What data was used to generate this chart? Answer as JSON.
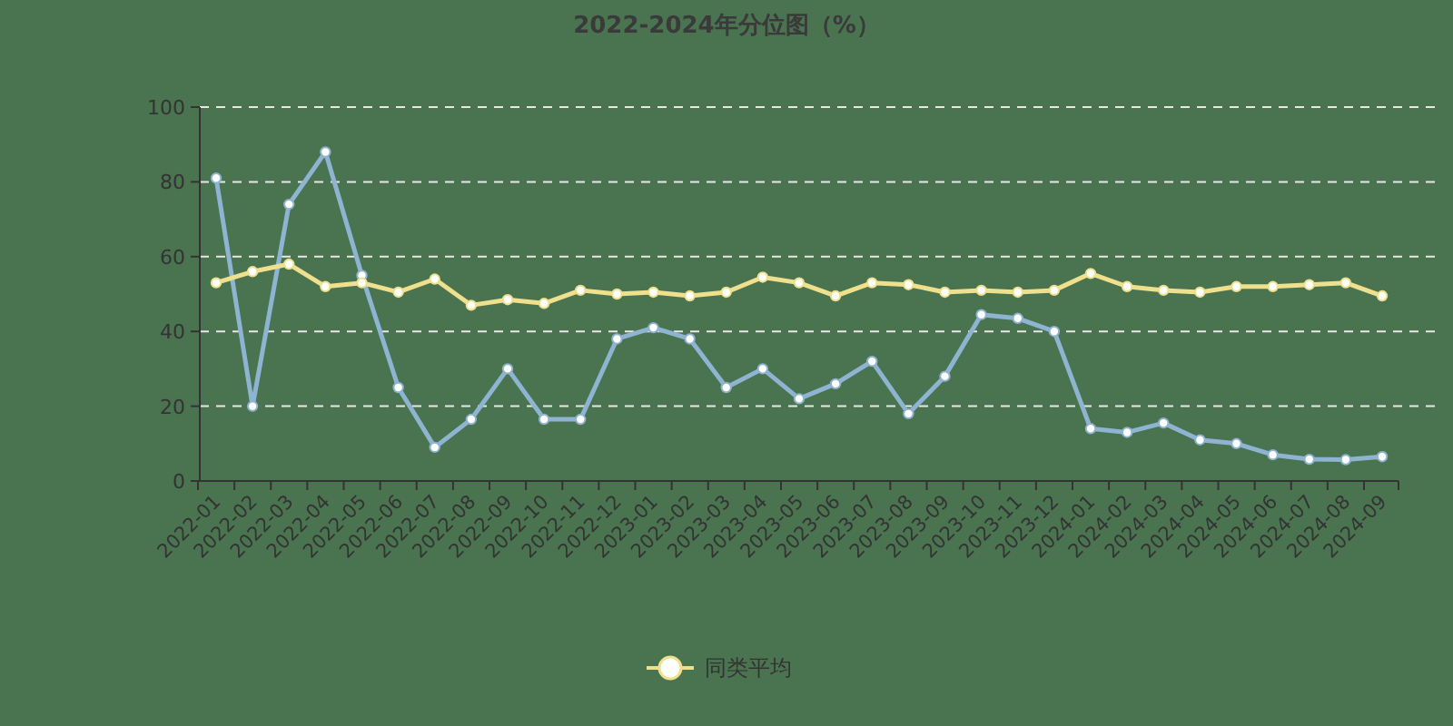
{
  "chart_data": {
    "type": "line",
    "title": "2022-2024年分位图（%）",
    "categories": [
      "2022-01",
      "2022-02",
      "2022-03",
      "2022-04",
      "2022-05",
      "2022-06",
      "2022-07",
      "2022-08",
      "2022-09",
      "2022-10",
      "2022-11",
      "2022-12",
      "2023-01",
      "2023-02",
      "2023-03",
      "2023-04",
      "2023-05",
      "2023-06",
      "2023-07",
      "2023-08",
      "2023-09",
      "2023-10",
      "2023-11",
      "2023-12",
      "2024-01",
      "2024-02",
      "2024-03",
      "2024-04",
      "2024-05",
      "2024-06",
      "2024-07",
      "2024-08",
      "2024-09"
    ],
    "series": [
      {
        "color": "#8fb4d2",
        "values": [
          81,
          20,
          74,
          88,
          55,
          25,
          9,
          16.5,
          30,
          16.5,
          16.5,
          38,
          41,
          38,
          25,
          30,
          22,
          26,
          32,
          18,
          28,
          44.5,
          43.5,
          40,
          14,
          13,
          15.5,
          11,
          10,
          7,
          5.8,
          5.7,
          6.5
        ]
      },
      {
        "name": "同类平均",
        "color": "#eee08c",
        "values": [
          53,
          56,
          58,
          52,
          53,
          50.5,
          54,
          47,
          48.5,
          47.5,
          51,
          50,
          50.5,
          49.5,
          50.5,
          54.5,
          53,
          49.5,
          53,
          52.5,
          50.5,
          51,
          50.5,
          51,
          55.5,
          52,
          51,
          50.5,
          52,
          52,
          52.5,
          53,
          49.5
        ]
      }
    ],
    "ylim": [
      0,
      100
    ],
    "yticks": [
      0,
      20,
      40,
      60,
      80,
      100
    ],
    "grid": "y",
    "legend": "bottom",
    "marker": "circle",
    "line_style": "solid"
  }
}
